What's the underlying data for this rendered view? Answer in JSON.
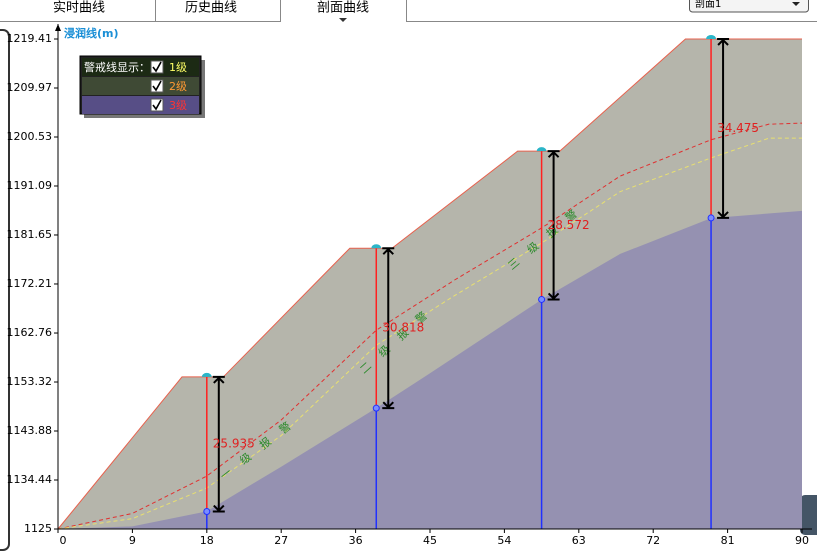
{
  "ui": {
    "tabs": [
      "实时曲线",
      "历史曲线",
      "剖面曲线"
    ],
    "dropdown": "剖面1"
  },
  "chart_data": {
    "type": "profile",
    "y_label": "浸润线(m)",
    "xlim": [
      0,
      90
    ],
    "xticks": [
      0,
      9,
      18,
      27,
      36,
      45,
      54,
      63,
      72,
      81,
      90
    ],
    "ylim": [
      1125,
      1219.41
    ],
    "yticks": [
      1125,
      1134.44,
      1143.88,
      1153.32,
      1162.76,
      1172.21,
      1181.65,
      1191.09,
      1200.53,
      1209.97,
      1219.41
    ],
    "surface": {
      "color": "#b5b5ab",
      "stroke": "#e8604c",
      "x": [
        0,
        15,
        20,
        35.3,
        40.4,
        55.6,
        60.7,
        75.9,
        90
      ],
      "y": [
        1125,
        1154.3,
        1154.3,
        1179.1,
        1179.1,
        1197.8,
        1197.8,
        1219.41,
        1219.41
      ]
    },
    "bedrock": {
      "color": "#9591b1",
      "x": [
        0,
        9,
        18,
        27,
        38.5,
        45,
        58.5,
        68,
        79,
        90
      ],
      "y": [
        1125,
        1125.5,
        1128.4,
        1137,
        1148.3,
        1155,
        1169.2,
        1178,
        1184.9,
        1186.3
      ]
    },
    "warning_lines": [
      {
        "color": "#e03030",
        "x": [
          0,
          9,
          18,
          27,
          38.5,
          48,
          58.5,
          68,
          79,
          86,
          90
        ],
        "y": [
          1125,
          1128,
          1135.2,
          1146,
          1163.3,
          1173,
          1183,
          1193,
          1200,
          1203,
          1203.2
        ]
      },
      {
        "color": "#e8e070",
        "x": [
          0,
          9,
          18,
          27,
          38.5,
          48,
          58.5,
          68,
          79,
          86,
          90
        ],
        "y": [
          1125,
          1127,
          1132.9,
          1143,
          1160.4,
          1170,
          1180.1,
          1190,
          1196.5,
          1200.3,
          1200.3
        ]
      }
    ],
    "wells": {
      "x": [
        18,
        38.5,
        58.5,
        79
      ],
      "ground": [
        1154.3,
        1179.1,
        1197.8,
        1219.41
      ],
      "depth": [
        25.935,
        30.818,
        28.572,
        34.475
      ]
    },
    "annotations": [
      "一级报警",
      "二级报警",
      "三级报警"
    ],
    "legend": {
      "title": "警戒线显示：",
      "items": [
        {
          "name": "1级",
          "color": "#ffff66"
        },
        {
          "name": "2级",
          "color": "#ff9933"
        },
        {
          "name": "3级",
          "color": "#ff3333"
        }
      ]
    }
  }
}
